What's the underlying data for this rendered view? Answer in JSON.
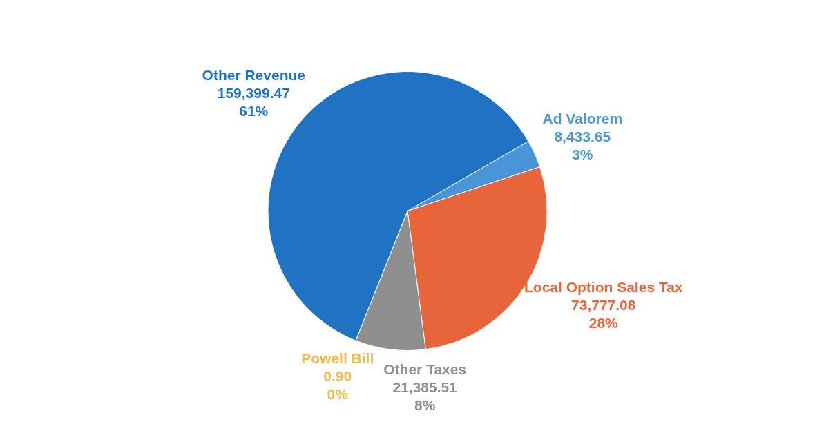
{
  "chart_data": {
    "type": "pie",
    "categories": [
      "Ad Valorem",
      "Local Option Sales Tax",
      "Other Taxes",
      "Powell Bill",
      "Other Revenue"
    ],
    "values": [
      8433.65,
      73777.08,
      21385.51,
      0.9,
      159399.47
    ],
    "colors": [
      "#4a94d8",
      "#e8643a",
      "#8f8f8f",
      "#f5b94a",
      "#1f73c2"
    ],
    "value_labels": [
      "8,433.65\n3%",
      "73,777.08\n28%",
      "21,385.51\n8%",
      "0.90\n0%",
      "159,399.47\n61%"
    ],
    "legend": false
  }
}
